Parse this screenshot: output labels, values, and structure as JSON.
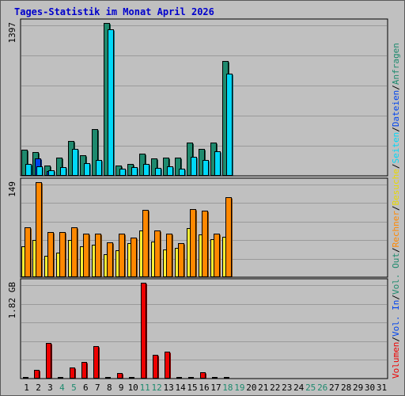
{
  "title": "Tages-Statistik im Monat April 2026",
  "days": [
    "1",
    "2",
    "3",
    "4",
    "5",
    "6",
    "7",
    "8",
    "9",
    "10",
    "11",
    "12",
    "13",
    "14",
    "15",
    "16",
    "17",
    "18",
    "19",
    "20",
    "21",
    "22",
    "23",
    "24",
    "25",
    "26",
    "27",
    "28",
    "29",
    "30",
    "31"
  ],
  "weekend_days": [
    "4",
    "5",
    "11",
    "12",
    "18",
    "19",
    "25",
    "26"
  ],
  "colors": {
    "background": "#c0c0c0",
    "anfragen": "#1e8a6e",
    "dateien": "#00d8f8",
    "seiten": "#0044ee",
    "besuche": "#ffee33",
    "rechner": "#ff8800",
    "volumen": "#ee0000",
    "weekday_label": "#000000",
    "weekend_label": "#1e8a6e"
  },
  "legend_right": {
    "volumen": "Volumen",
    "vol_in": "Vol. In",
    "vol_out": "Vol. Out",
    "rechner": "Rechner",
    "besuche": "Besuche",
    "seiten": "Seiten",
    "dateien": "Dateien",
    "anfragen": "Anfragen",
    "sep": "/"
  },
  "chart_data": [
    {
      "type": "bar",
      "name": "top",
      "y_max_label": "1397",
      "ylim": [
        0,
        1397
      ],
      "categories": [
        "1",
        "2",
        "3",
        "4",
        "5",
        "6",
        "7",
        "8",
        "9",
        "10",
        "11",
        "12",
        "13",
        "14",
        "15",
        "16",
        "17",
        "18"
      ],
      "series": [
        {
          "name": "Anfragen",
          "values": [
            232,
            210,
            90,
            160,
            310,
            180,
            420,
            1397,
            90,
            105,
            195,
            150,
            160,
            160,
            300,
            240,
            300,
            1050
          ]
        },
        {
          "name": "Dateien",
          "values": [
            100,
            80,
            45,
            75,
            240,
            110,
            140,
            1340,
            55,
            75,
            100,
            65,
            80,
            55,
            170,
            135,
            215,
            930
          ]
        },
        {
          "name": "Seiten",
          "values": [
            0,
            150,
            40,
            0,
            0,
            0,
            0,
            0,
            0,
            0,
            0,
            0,
            0,
            0,
            0,
            0,
            0,
            0
          ]
        }
      ]
    },
    {
      "type": "bar",
      "name": "middle",
      "y_max_label": "149",
      "ylim": [
        0,
        149
      ],
      "categories": [
        "1",
        "2",
        "3",
        "4",
        "5",
        "6",
        "7",
        "8",
        "9",
        "10",
        "11",
        "12",
        "13",
        "14",
        "15",
        "16",
        "17",
        "18"
      ],
      "series": [
        {
          "name": "Besuche",
          "values": [
            48,
            57,
            33,
            37,
            57,
            48,
            50,
            35,
            41,
            53,
            72,
            55,
            43,
            45,
            76,
            66,
            59,
            62
          ]
        },
        {
          "name": "Rechner",
          "values": [
            78,
            149,
            70,
            70,
            78,
            68,
            67,
            54,
            67,
            61,
            105,
            73,
            68,
            52,
            107,
            104,
            68,
            125
          ]
        }
      ]
    },
    {
      "type": "bar",
      "name": "bottom",
      "y_max_label": "1.82 GB",
      "ylim": [
        0,
        1.82
      ],
      "categories": [
        "1",
        "2",
        "3",
        "4",
        "5",
        "6",
        "7",
        "8",
        "9",
        "10",
        "11",
        "12",
        "13",
        "14",
        "15",
        "16",
        "17",
        "18"
      ],
      "series": [
        {
          "name": "Volumen",
          "values": [
            0.01,
            0.15,
            0.67,
            0.01,
            0.2,
            0.3,
            0.6,
            0.01,
            0.09,
            0.01,
            1.82,
            0.44,
            0.5,
            0.01,
            0.01,
            0.1,
            0.01,
            0.01
          ]
        }
      ]
    }
  ]
}
